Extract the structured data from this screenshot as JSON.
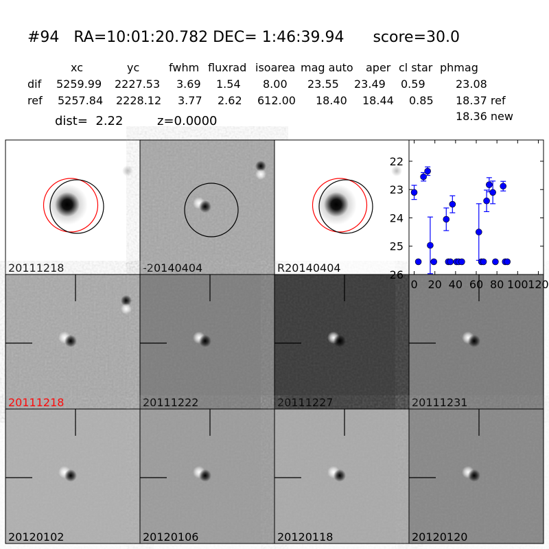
{
  "header": {
    "title": "#94   RA=10:01:20.782 DEC= 1:46:39.94      score=30.0",
    "columns": [
      "xc",
      "yc",
      "fwhm",
      "fluxrad",
      "isoarea",
      "mag auto",
      "aper",
      "cl star",
      "phmag"
    ],
    "rows": [
      {
        "label": "dif",
        "values": [
          "5259.99",
          "2227.53",
          "3.69",
          "1.54",
          "8.00",
          "23.55",
          "23.49",
          "0.59",
          "23.08"
        ]
      },
      {
        "label": "ref",
        "values": [
          "5257.84",
          "2228.12",
          "3.77",
          "2.62",
          "612.00",
          "18.40",
          "18.44",
          "0.85",
          "18.37 ref"
        ]
      }
    ],
    "phmag_new": "18.36 new",
    "dist": "dist=  2.22",
    "z": "z=0.0000"
  },
  "panels": [
    {
      "label": "20111218",
      "label_color": "#000000",
      "bg": "#ffffff"
    },
    {
      "label": "-20140404",
      "label_color": "#000000",
      "bg": "#a6a6a6"
    },
    {
      "label": "R20140404",
      "label_color": "#000000",
      "bg": "#ffffff"
    },
    {
      "label": "20111218",
      "label_color": "#ff0000",
      "bg": "#a8a8a8"
    },
    {
      "label": "20111222",
      "label_color": "#000000",
      "bg": "#7e7e7e"
    },
    {
      "label": "20111227",
      "label_color": "#000000",
      "bg": "#3a3a3a"
    },
    {
      "label": "20111231",
      "label_color": "#000000",
      "bg": "#7c7c7c"
    },
    {
      "label": "20120102",
      "label_color": "#000000",
      "bg": "#b0b0b0"
    },
    {
      "label": "20120106",
      "label_color": "#000000",
      "bg": "#9c9c9c"
    },
    {
      "label": "20120118",
      "label_color": "#000000",
      "bg": "#aaaaaa"
    },
    {
      "label": "20120120",
      "label_color": "#000000",
      "bg": "#888888"
    }
  ],
  "colors": {
    "points": "#0000ff",
    "circle_ref": "#ff0000",
    "circle_dif": "#000000"
  },
  "chart_data": {
    "type": "scatter",
    "error_bars": true,
    "xlim": [
      -5,
      125
    ],
    "ylim": [
      26,
      21.25
    ],
    "y_inverted": true,
    "xticks": [
      "0",
      "20",
      "40",
      "60",
      "80",
      "100",
      "120"
    ],
    "yticks": [
      "22",
      "23",
      "24",
      "25",
      "26"
    ],
    "points": [
      {
        "x": 0,
        "y": 23.1,
        "err": 0.25
      },
      {
        "x": 4,
        "y": 25.55,
        "err": 0.05
      },
      {
        "x": 9,
        "y": 22.55,
        "err": 0.15
      },
      {
        "x": 13,
        "y": 22.35,
        "err": 0.15
      },
      {
        "x": 15.5,
        "y": 24.97,
        "err": 1.0
      },
      {
        "x": 19,
        "y": 25.55,
        "err": 0.05
      },
      {
        "x": 31,
        "y": 24.05,
        "err": 0.4
      },
      {
        "x": 33,
        "y": 25.55,
        "err": 0.05
      },
      {
        "x": 35,
        "y": 25.55,
        "err": 0.05
      },
      {
        "x": 37,
        "y": 23.52,
        "err": 0.3
      },
      {
        "x": 41,
        "y": 25.55,
        "err": 0.05
      },
      {
        "x": 43,
        "y": 25.55,
        "err": 0.05
      },
      {
        "x": 46,
        "y": 25.55,
        "err": 0.05
      },
      {
        "x": 62.5,
        "y": 24.5,
        "err": 1.0
      },
      {
        "x": 65,
        "y": 25.55,
        "err": 0.05
      },
      {
        "x": 67,
        "y": 25.55,
        "err": 0.05
      },
      {
        "x": 70,
        "y": 23.4,
        "err": 0.38
      },
      {
        "x": 72.5,
        "y": 22.83,
        "err": 0.25
      },
      {
        "x": 76,
        "y": 23.1,
        "err": 0.4
      },
      {
        "x": 78.5,
        "y": 25.55,
        "err": 0.05
      },
      {
        "x": 86,
        "y": 22.88,
        "err": 0.17
      },
      {
        "x": 88,
        "y": 25.55,
        "err": 0.05
      },
      {
        "x": 90,
        "y": 25.55,
        "err": 0.05
      }
    ]
  }
}
